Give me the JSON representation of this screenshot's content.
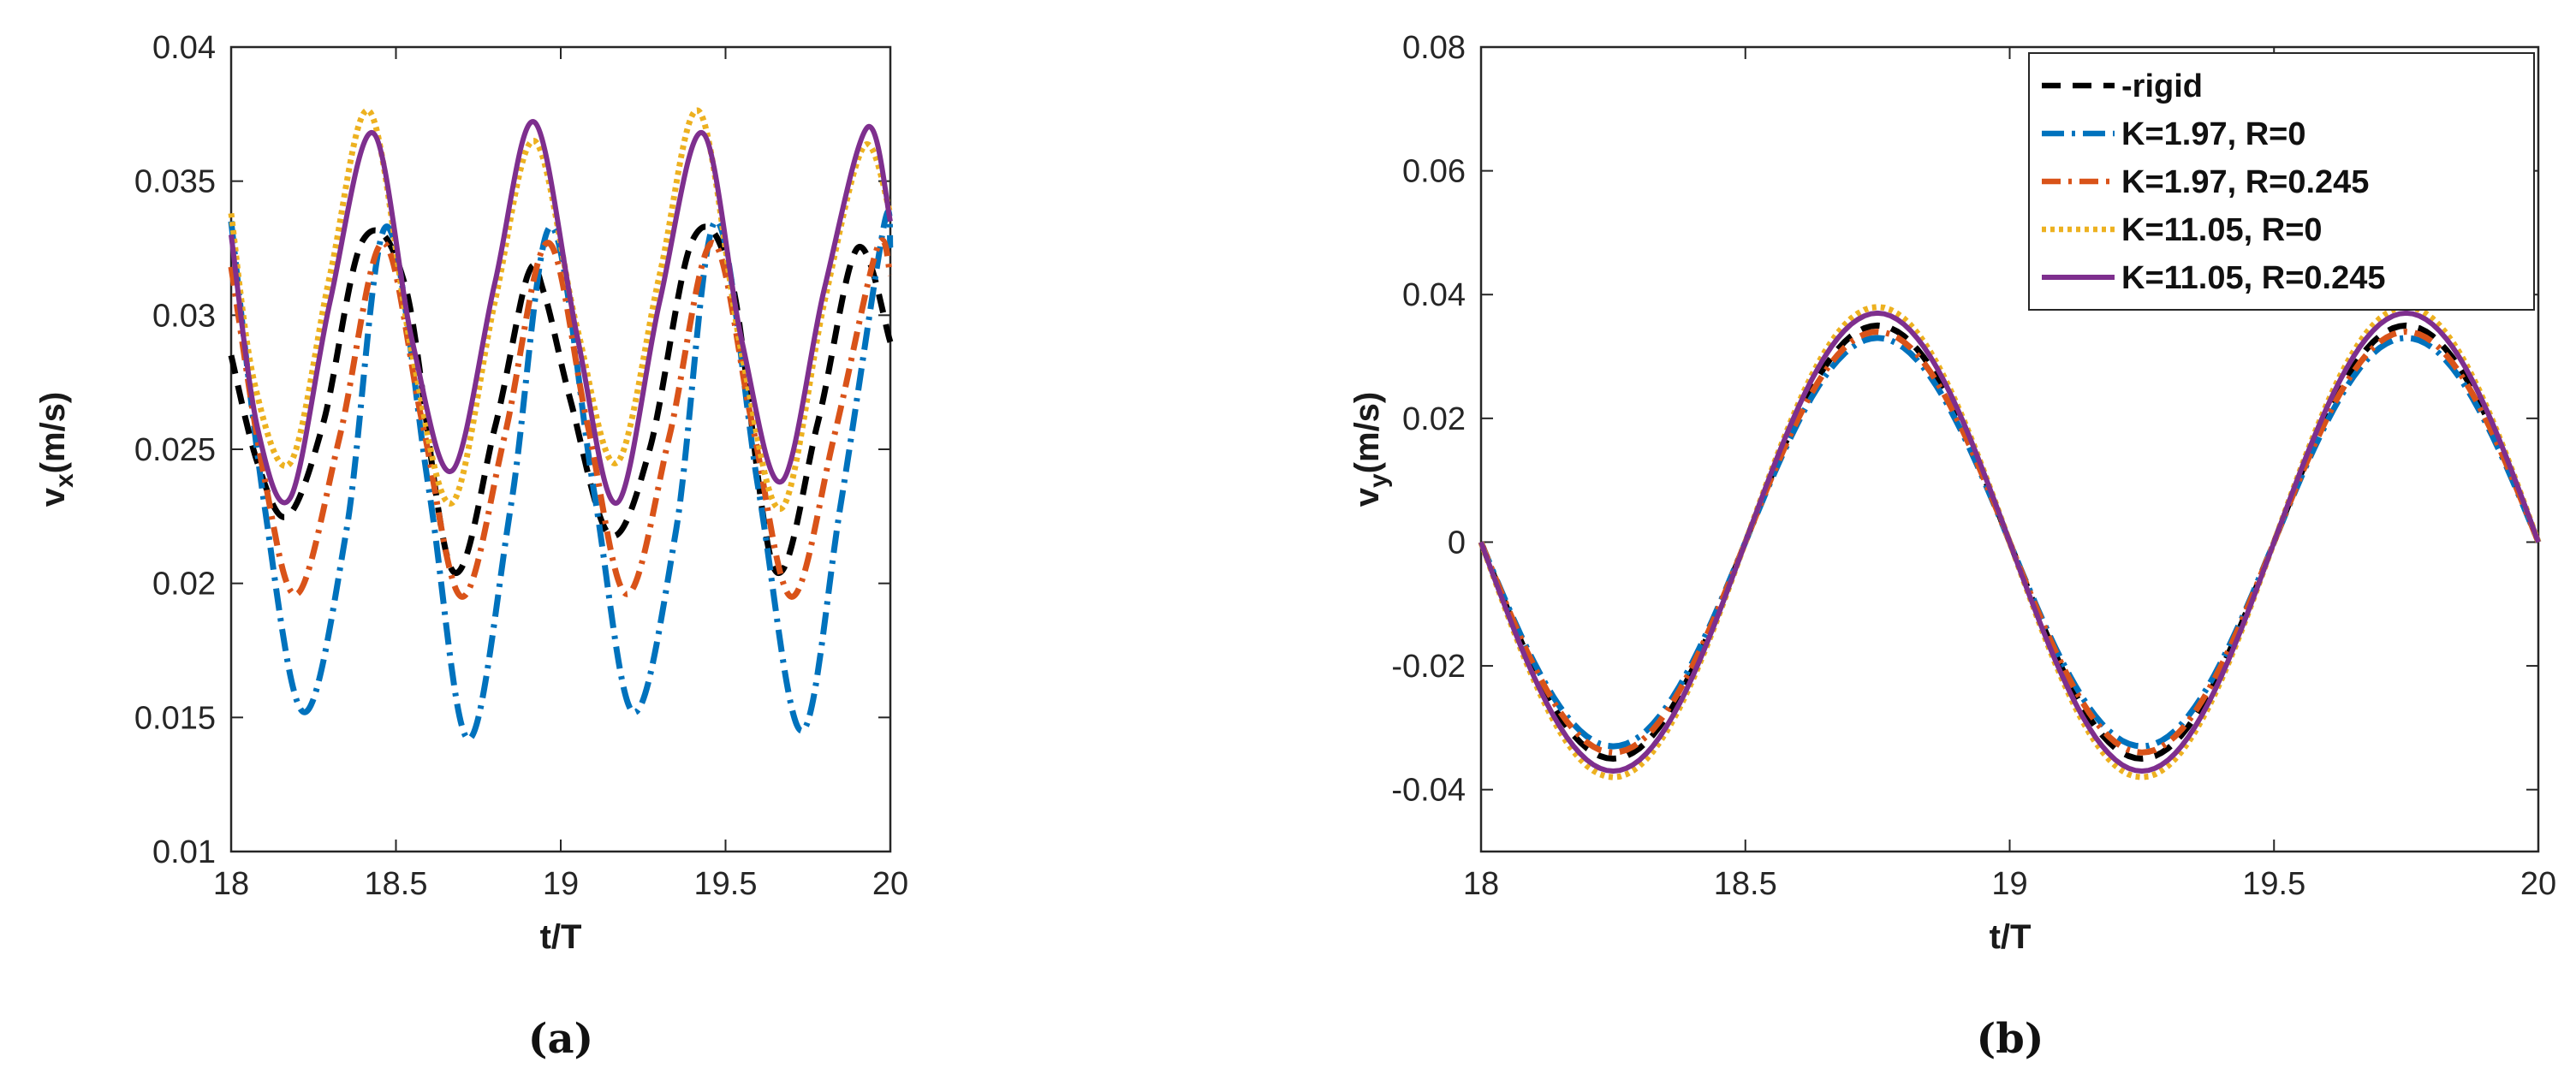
{
  "series_styles": [
    {
      "name": "rigid",
      "color": "#000000",
      "dash": "22,14"
    },
    {
      "name": "K=1.97, R=0",
      "color": "#0072BD",
      "dash": "26,9,4,9"
    },
    {
      "name": "K=1.97, R=0.245",
      "color": "#D95319",
      "dash": "22,9,4,9"
    },
    {
      "name": "K=11.05, R=0",
      "color": "#EDB120",
      "dash": "5,5"
    },
    {
      "name": "K=11.05, R=0.245",
      "color": "#7E2F8E",
      "dash": ""
    }
  ],
  "captions": {
    "a": "(a)",
    "b": "(b)"
  },
  "chart_data": [
    {
      "type": "line",
      "panel": "a",
      "xlabel": "t/T",
      "ylabel_main": "v",
      "ylabel_sub": "x",
      "ylabel_unit": "(m/s)",
      "xlim": [
        18,
        20
      ],
      "ylim": [
        0.01,
        0.04
      ],
      "xticks": [
        18,
        18.5,
        19,
        19.5,
        20
      ],
      "xtick_labels": [
        "18",
        "18.5",
        "19",
        "19.5",
        "20"
      ],
      "yticks": [
        0.01,
        0.015,
        0.02,
        0.025,
        0.03,
        0.035,
        0.04
      ],
      "ytick_labels": [
        "0.01",
        "0.015",
        "0.02",
        "0.025",
        "0.03",
        "0.035",
        "0.04"
      ],
      "series": [
        {
          "name": "rigid",
          "x": [
            18,
            18.08,
            18.17,
            18.28,
            18.4,
            18.53,
            18.67,
            18.8,
            18.9,
            18.95,
            19.03,
            19.15,
            19.27,
            19.4,
            19.52,
            19.65,
            19.78,
            19.9,
            20
          ],
          "y": [
            0.0285,
            0.0245,
            0.0225,
            0.026,
            0.0328,
            0.031,
            0.0205,
            0.0258,
            0.0315,
            0.0308,
            0.0268,
            0.0218,
            0.025,
            0.0328,
            0.0312,
            0.0205,
            0.026,
            0.0325,
            0.029
          ]
        },
        {
          "name": "K=1.97, R=0",
          "x": [
            18,
            18.1,
            18.22,
            18.35,
            18.47,
            18.6,
            18.72,
            18.85,
            18.97,
            19.1,
            19.22,
            19.35,
            19.47,
            19.6,
            19.73,
            19.85,
            19.98,
            20
          ],
          "y": [
            0.0335,
            0.023,
            0.0152,
            0.022,
            0.0333,
            0.0235,
            0.0142,
            0.023,
            0.0333,
            0.0235,
            0.0152,
            0.022,
            0.0335,
            0.0235,
            0.0145,
            0.023,
            0.0333,
            0.0325
          ]
        },
        {
          "name": "K=1.97, R=0.245",
          "x": [
            18,
            18.1,
            18.2,
            18.33,
            18.46,
            18.58,
            18.7,
            18.83,
            18.96,
            19.08,
            19.2,
            19.33,
            19.46,
            19.58,
            19.7,
            19.83,
            19.96,
            20
          ],
          "y": [
            0.0318,
            0.024,
            0.0196,
            0.0255,
            0.0327,
            0.026,
            0.0195,
            0.0255,
            0.0327,
            0.026,
            0.0196,
            0.0255,
            0.0327,
            0.026,
            0.0195,
            0.0255,
            0.0325,
            0.0315
          ]
        },
        {
          "name": "K=11.05, R=0",
          "x": [
            18,
            18.07,
            18.18,
            18.3,
            18.42,
            18.55,
            18.67,
            18.8,
            18.92,
            19.05,
            19.17,
            19.3,
            19.42,
            19.55,
            19.67,
            19.8,
            19.92,
            20
          ],
          "y": [
            0.0338,
            0.0275,
            0.0245,
            0.0315,
            0.0376,
            0.0285,
            0.023,
            0.0305,
            0.0365,
            0.0295,
            0.0245,
            0.0315,
            0.0376,
            0.0285,
            0.0228,
            0.0305,
            0.0363,
            0.0338
          ]
        },
        {
          "name": "K=11.05, R=0.245",
          "x": [
            18,
            18.08,
            18.18,
            18.3,
            18.43,
            18.55,
            18.67,
            18.8,
            18.92,
            19.05,
            19.17,
            19.3,
            19.43,
            19.55,
            19.67,
            19.8,
            19.93,
            20
          ],
          "y": [
            0.033,
            0.0258,
            0.0232,
            0.0305,
            0.0368,
            0.029,
            0.0242,
            0.0312,
            0.0372,
            0.0292,
            0.023,
            0.0305,
            0.0368,
            0.029,
            0.0238,
            0.031,
            0.037,
            0.0335
          ]
        }
      ]
    },
    {
      "type": "line",
      "panel": "b",
      "xlabel": "t/T",
      "ylabel_main": "v",
      "ylabel_sub": "y",
      "ylabel_unit": "(m/s)",
      "xlim": [
        18,
        20
      ],
      "ylim": [
        -0.05,
        0.08
      ],
      "xticks": [
        18,
        18.5,
        19,
        19.5,
        20
      ],
      "xtick_labels": [
        "18",
        "18.5",
        "19",
        "19.5",
        "20"
      ],
      "yticks": [
        -0.04,
        -0.02,
        0,
        0.02,
        0.04,
        0.06,
        0.08
      ],
      "ytick_labels": [
        "-0.04",
        "-0.02",
        "0",
        "0.02",
        "0.04",
        "0.06",
        "0.08"
      ],
      "legend": [
        "-rigid",
        "K=1.97, R=0",
        "K=1.97, R=0.245",
        "K=11.05, R=0",
        "K=11.05, R=0.245"
      ],
      "legend_position": "top-right",
      "series": [
        {
          "name": "rigid",
          "sine": {
            "amplitude": 0.035,
            "period": 1.0,
            "phase_start": 18,
            "sign": -1
          }
        },
        {
          "name": "K=1.97, R=0",
          "sine": {
            "amplitude": 0.033,
            "period": 1.0,
            "phase_start": 18,
            "sign": -1
          }
        },
        {
          "name": "K=1.97, R=0.245",
          "sine": {
            "amplitude": 0.034,
            "period": 1.0,
            "phase_start": 18,
            "sign": -1
          }
        },
        {
          "name": "K=11.05, R=0",
          "sine": {
            "amplitude": 0.038,
            "period": 1.0,
            "phase_start": 18,
            "sign": -1
          }
        },
        {
          "name": "K=11.05, R=0.245",
          "sine": {
            "amplitude": 0.037,
            "period": 1.0,
            "phase_start": 18,
            "sign": -1
          }
        }
      ]
    }
  ]
}
